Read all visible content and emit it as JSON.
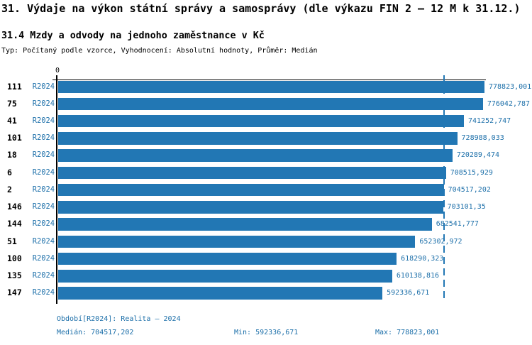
{
  "title": "31. Výdaje na výkon státní správy a samosprávy (dle výkazu FIN 2 – 12 M k 31.12.)",
  "subtitle": "31.4 Mzdy a odvody na jednoho zaměstnance v Kč",
  "type_line": "Typ: Počítaný podle vzorce, Vyhodnocení: Absolutní hodnoty, Průměr: Medián",
  "colors": {
    "bar": "#2277b4",
    "accent_text": "#1c6fa9",
    "axis": "#000000"
  },
  "chart_data": {
    "type": "bar",
    "orientation": "horizontal",
    "title": "31.4 Mzdy a odvody na jednoho zaměstnance v Kč",
    "x_axis": {
      "zero_label": "0",
      "min": 0,
      "max": 778823.001,
      "gridlines": false
    },
    "median_value": 704517.202,
    "legend": "none",
    "rows": [
      {
        "id": "111",
        "period": "R2024",
        "value": 778823.001,
        "value_label": "778823,001"
      },
      {
        "id": "75",
        "period": "R2024",
        "value": 776042.787,
        "value_label": "776042,787"
      },
      {
        "id": "41",
        "period": "R2024",
        "value": 741252.747,
        "value_label": "741252,747"
      },
      {
        "id": "101",
        "period": "R2024",
        "value": 728988.033,
        "value_label": "728988,033"
      },
      {
        "id": "18",
        "period": "R2024",
        "value": 720289.474,
        "value_label": "720289,474"
      },
      {
        "id": "6",
        "period": "R2024",
        "value": 708515.929,
        "value_label": "708515,929"
      },
      {
        "id": "2",
        "period": "R2024",
        "value": 704517.202,
        "value_label": "704517,202"
      },
      {
        "id": "146",
        "period": "R2024",
        "value": 703101.35,
        "value_label": "703101,35"
      },
      {
        "id": "144",
        "period": "R2024",
        "value": 682541.777,
        "value_label": "682541,777"
      },
      {
        "id": "51",
        "period": "R2024",
        "value": 652302.972,
        "value_label": "652302,972"
      },
      {
        "id": "100",
        "period": "R2024",
        "value": 618290.323,
        "value_label": "618290,323"
      },
      {
        "id": "135",
        "period": "R2024",
        "value": 610138.816,
        "value_label": "610138,816"
      },
      {
        "id": "147",
        "period": "R2024",
        "value": 592336.671,
        "value_label": "592336,671"
      }
    ]
  },
  "footer": {
    "period_line": "Období[R2024]: Realita – 2024",
    "median": "Medián: 704517,202",
    "min": "Min: 592336,671",
    "max": "Max: 778823,001"
  }
}
